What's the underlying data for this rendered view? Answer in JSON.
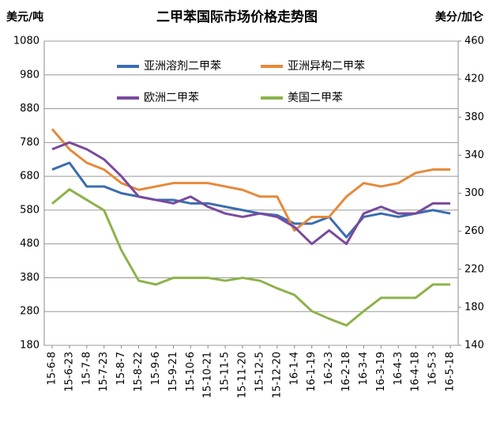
{
  "chart_data": {
    "type": "line",
    "title": "二甲苯国际市场价格走势图",
    "ylabel": "美元/吨",
    "y2label": "美分/加仑",
    "categories": [
      "15-6-8",
      "15-6-23",
      "15-7-8",
      "15-7-23",
      "15-8-7",
      "15-8-22",
      "15-9-6",
      "15-9-21",
      "15-10-6",
      "15-10-21",
      "15-11-5",
      "15-11-20",
      "15-12-5",
      "15-12-20",
      "16-1-4",
      "16-1-19",
      "16-2-3",
      "16-2-18",
      "16-3-4",
      "16-3-19",
      "16-4-3",
      "16-4-18",
      "16-5-3",
      "16-5-18"
    ],
    "series": [
      {
        "name": "亚洲溶剂二甲苯",
        "color": "#3a6db0",
        "values": [
          700,
          720,
          650,
          650,
          630,
          620,
          610,
          610,
          600,
          600,
          590,
          580,
          570,
          565,
          540,
          540,
          560,
          500,
          560,
          570,
          560,
          570,
          580,
          570
        ]
      },
      {
        "name": "亚洲异构二甲苯",
        "color": "#e6893a",
        "values": [
          820,
          760,
          720,
          700,
          660,
          640,
          650,
          660,
          660,
          660,
          650,
          640,
          620,
          620,
          520,
          560,
          560,
          620,
          660,
          650,
          660,
          690,
          700,
          700
        ]
      },
      {
        "name": "欧洲二甲苯",
        "color": "#7a4a9c",
        "values": [
          760,
          780,
          760,
          730,
          680,
          620,
          610,
          600,
          620,
          590,
          570,
          560,
          570,
          560,
          530,
          480,
          520,
          480,
          570,
          590,
          570,
          570,
          600,
          600
        ]
      },
      {
        "name": "美国二甲苯",
        "color": "#8db24a",
        "axis": "y2",
        "values": [
          289,
          304,
          293,
          282,
          240,
          208,
          204,
          211,
          211,
          211,
          208,
          211,
          208,
          200,
          193,
          176,
          168,
          161,
          176,
          190,
          190,
          190,
          204,
          204
        ]
      }
    ],
    "ylim": [
      180,
      1080
    ],
    "yticks": [
      180,
      280,
      380,
      480,
      580,
      680,
      780,
      880,
      980,
      1080
    ],
    "y2lim": [
      140,
      460
    ],
    "y2ticks": [
      140,
      180,
      220,
      260,
      300,
      340,
      380,
      420,
      460
    ],
    "grid": true,
    "legend": "top"
  }
}
